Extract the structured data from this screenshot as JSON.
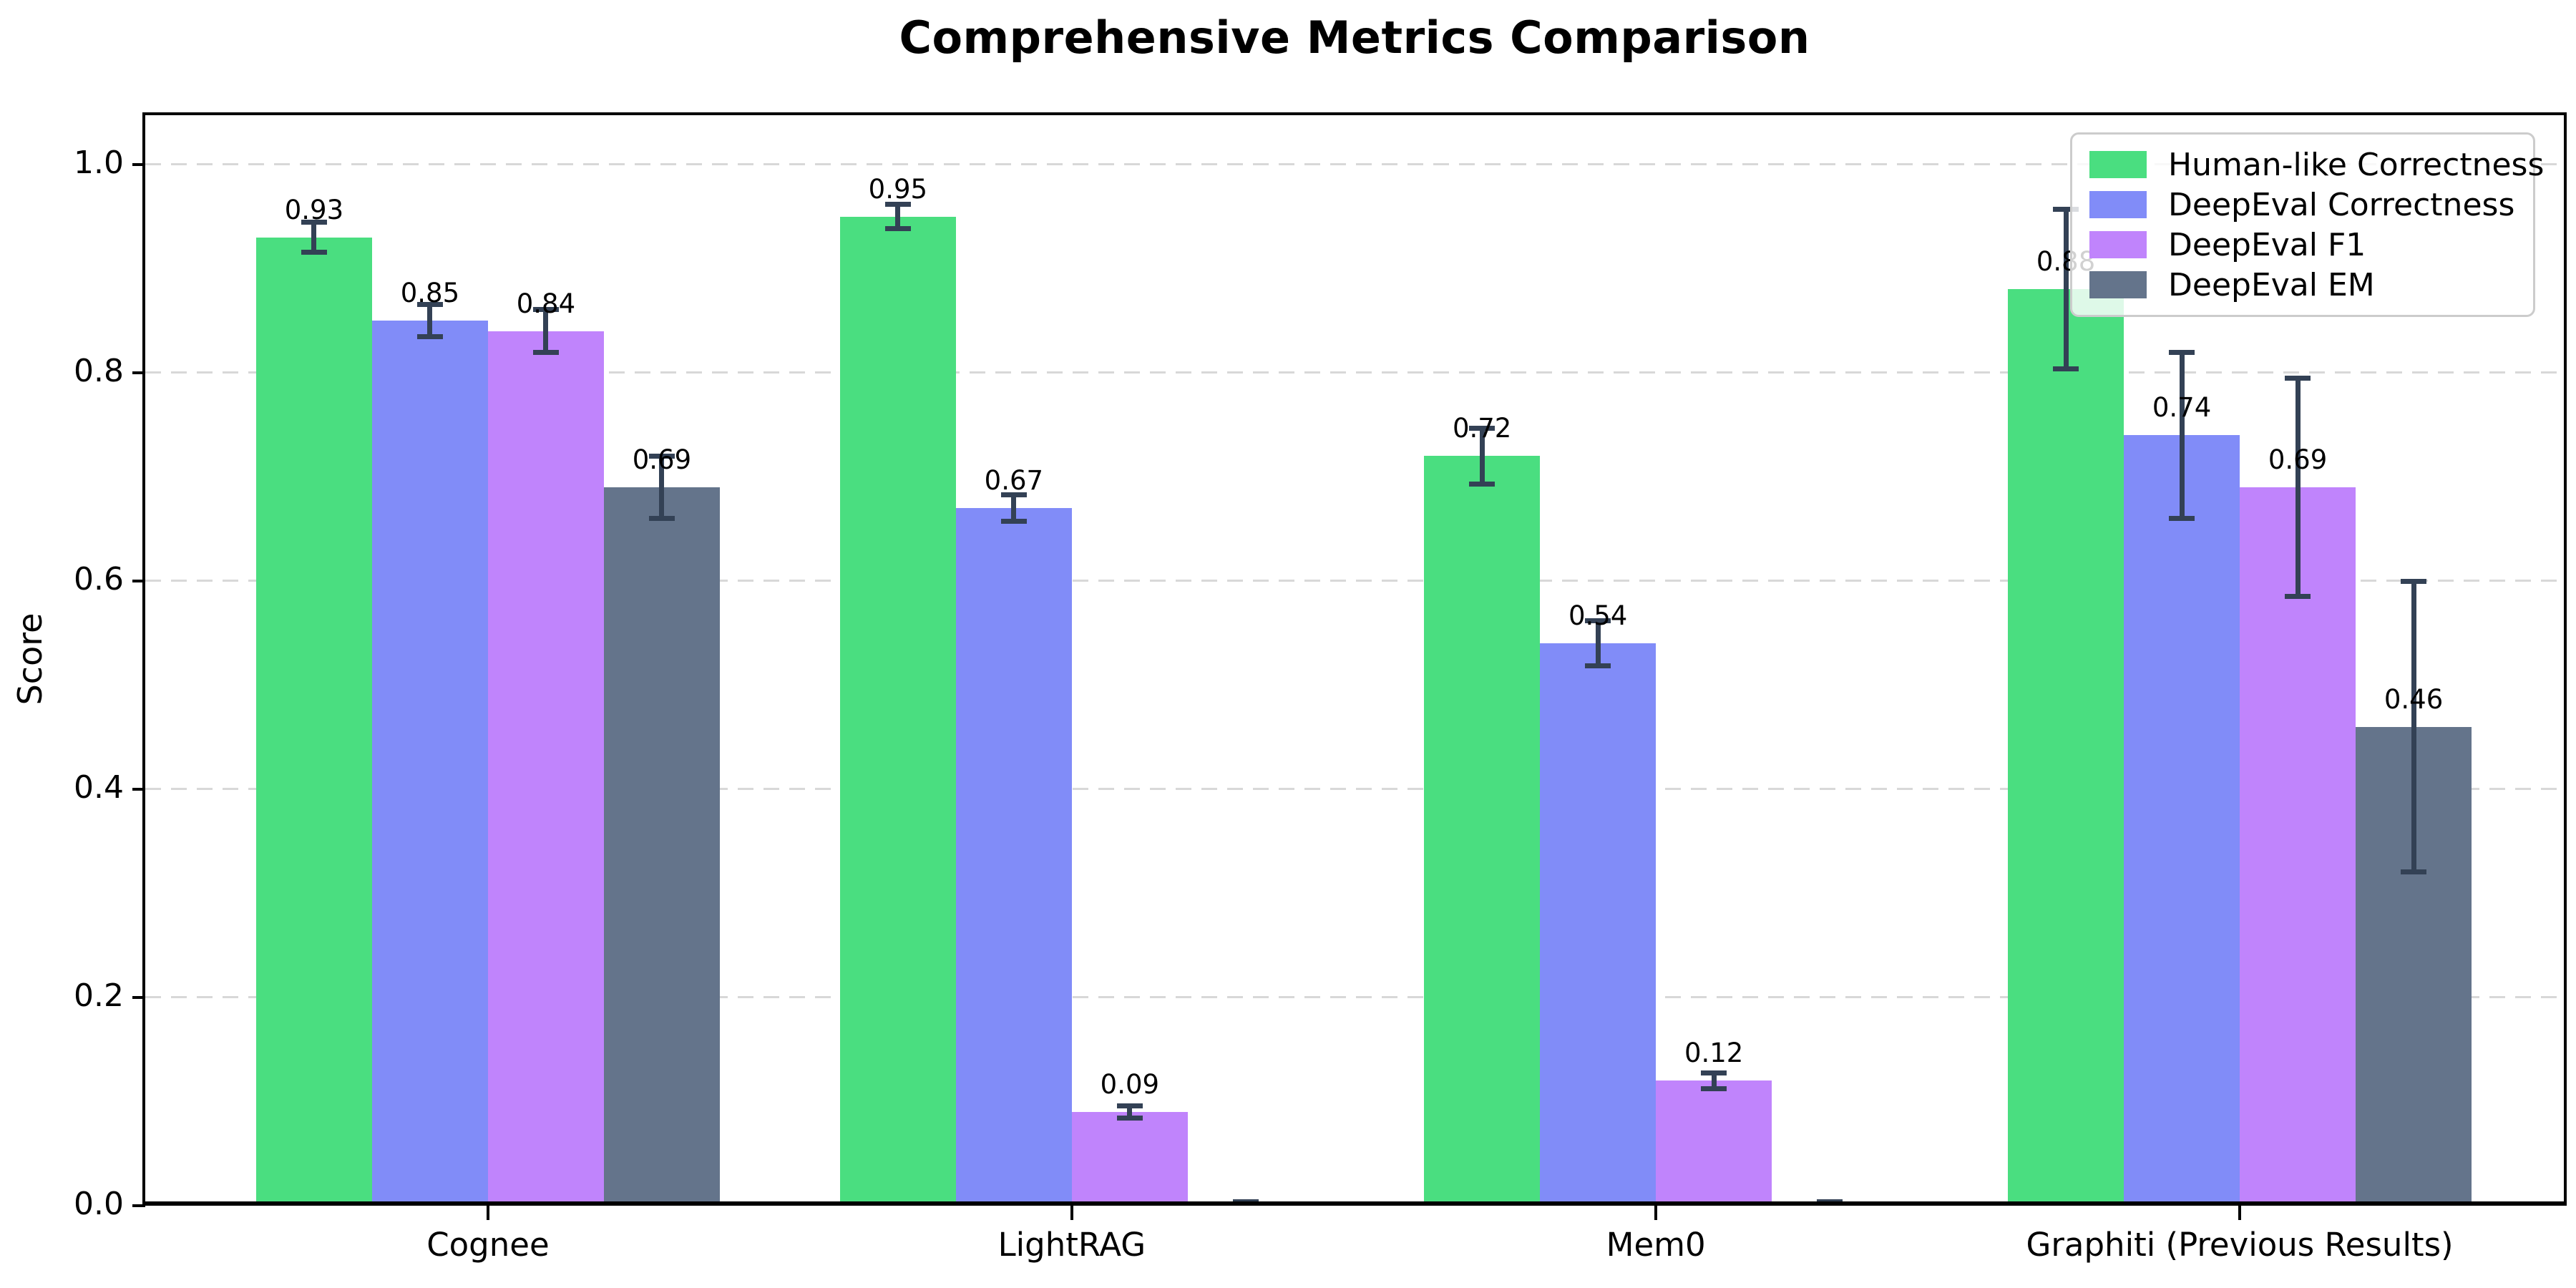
{
  "chart_data": {
    "type": "bar",
    "title": "Comprehensive Metrics Comparison",
    "xlabel": "",
    "ylabel": "Score",
    "ylim": [
      0,
      1.05
    ],
    "yticks": [
      0.0,
      0.2,
      0.4,
      0.6,
      0.8,
      1.0
    ],
    "ytick_labels": [
      "0.0",
      "0.2",
      "0.4",
      "0.6",
      "0.8",
      "1.0"
    ],
    "grid": "horizontal-dashed",
    "legend_position": "upper-right",
    "categories": [
      "Cognee",
      "LightRAG",
      "Mem0",
      "Graphiti (Previous Results)"
    ],
    "series": [
      {
        "name": "Human-like Correctness",
        "color": "#4ade80",
        "values": [
          0.93,
          0.95,
          0.72,
          0.88
        ],
        "errors": [
          0.015,
          0.012,
          0.027,
          0.077
        ],
        "bar_labels": [
          "0.93",
          "0.95",
          "0.72",
          "0.88"
        ]
      },
      {
        "name": "DeepEval Correctness",
        "color": "#818cf8",
        "values": [
          0.85,
          0.67,
          0.54,
          0.74
        ],
        "errors": [
          0.016,
          0.013,
          0.022,
          0.08
        ],
        "bar_labels": [
          "0.85",
          "0.67",
          "0.54",
          "0.74"
        ]
      },
      {
        "name": "DeepEval F1",
        "color": "#c084fc",
        "values": [
          0.84,
          0.09,
          0.12,
          0.69
        ],
        "errors": [
          0.021,
          0.006,
          0.008,
          0.105
        ],
        "bar_labels": [
          "0.84",
          "0.09",
          "0.12",
          "0.69"
        ]
      },
      {
        "name": "DeepEval EM",
        "color": "#64748b",
        "values": [
          0.69,
          0.0,
          0.0,
          0.46
        ],
        "errors": [
          0.03,
          0.004,
          0.004,
          0.14
        ],
        "bar_labels": [
          "0.69",
          "",
          "",
          "0.46"
        ]
      }
    ],
    "error_bar_color": "#334155"
  }
}
